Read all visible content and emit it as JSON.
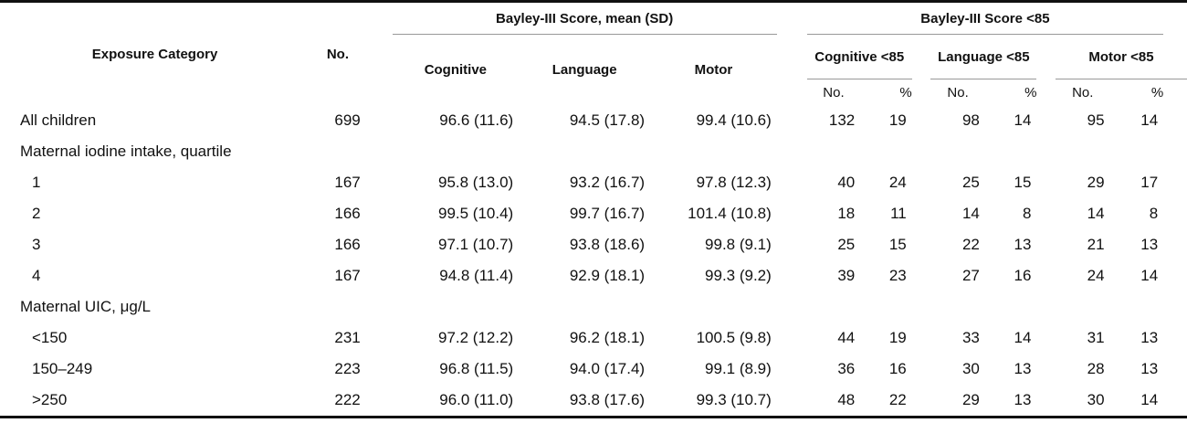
{
  "headers": {
    "exposure": "Exposure Category",
    "no": "No.",
    "bayley_mean": "Bayley-III Score, mean (SD)",
    "bayley_lt85": "Bayley-III Score <85",
    "cognitive": "Cognitive",
    "language": "Language",
    "motor": "Motor",
    "cognitive_lt85": "Cognitive <85",
    "language_lt85": "Language <85",
    "motor_lt85": "Motor <85",
    "sub_no": "No.",
    "sub_pct": "%"
  },
  "rows": [
    {
      "label": "All children",
      "indent": false,
      "n": "699",
      "cog": "96.6 (11.6)",
      "lang": "94.5 (17.8)",
      "motor": "99.4 (10.6)",
      "cn": "132",
      "cp": "19",
      "ln": "98",
      "lp": "14",
      "mn": "95",
      "mp": "14"
    },
    {
      "label": "Maternal iodine intake, quartile",
      "indent": false,
      "n": "",
      "cog": "",
      "lang": "",
      "motor": "",
      "cn": "",
      "cp": "",
      "ln": "",
      "lp": "",
      "mn": "",
      "mp": ""
    },
    {
      "label": "1",
      "indent": true,
      "n": "167",
      "cog": "95.8 (13.0)",
      "lang": "93.2 (16.7)",
      "motor": "97.8 (12.3)",
      "cn": "40",
      "cp": "24",
      "ln": "25",
      "lp": "15",
      "mn": "29",
      "mp": "17"
    },
    {
      "label": "2",
      "indent": true,
      "n": "166",
      "cog": "99.5 (10.4)",
      "lang": "99.7 (16.7)",
      "motor": "101.4 (10.8)",
      "cn": "18",
      "cp": "11",
      "ln": "14",
      "lp": "8",
      "mn": "14",
      "mp": "8"
    },
    {
      "label": "3",
      "indent": true,
      "n": "166",
      "cog": "97.1 (10.7)",
      "lang": "93.8 (18.6)",
      "motor": "99.8 (9.1)",
      "cn": "25",
      "cp": "15",
      "ln": "22",
      "lp": "13",
      "mn": "21",
      "mp": "13"
    },
    {
      "label": "4",
      "indent": true,
      "n": "167",
      "cog": "94.8 (11.4)",
      "lang": "92.9 (18.1)",
      "motor": "99.3 (9.2)",
      "cn": "39",
      "cp": "23",
      "ln": "27",
      "lp": "16",
      "mn": "24",
      "mp": "14"
    },
    {
      "label": "Maternal UIC, μg/L",
      "indent": false,
      "n": "",
      "cog": "",
      "lang": "",
      "motor": "",
      "cn": "",
      "cp": "",
      "ln": "",
      "lp": "",
      "mn": "",
      "mp": ""
    },
    {
      "label": "<150",
      "indent": true,
      "n": "231",
      "cog": "97.2 (12.2)",
      "lang": "96.2 (18.1)",
      "motor": "100.5 (9.8)",
      "cn": "44",
      "cp": "19",
      "ln": "33",
      "lp": "14",
      "mn": "31",
      "mp": "13"
    },
    {
      "label": "150–249",
      "indent": true,
      "n": "223",
      "cog": "96.8 (11.5)",
      "lang": "94.0 (17.4)",
      "motor": "99.1 (8.9)",
      "cn": "36",
      "cp": "16",
      "ln": "30",
      "lp": "13",
      "mn": "28",
      "mp": "13"
    },
    {
      "label": ">250",
      "indent": true,
      "n": "222",
      "cog": "96.0 (11.0)",
      "lang": "93.8 (17.6)",
      "motor": "99.3 (10.7)",
      "cn": "48",
      "cp": "22",
      "ln": "29",
      "lp": "13",
      "mn": "30",
      "mp": "14"
    }
  ]
}
